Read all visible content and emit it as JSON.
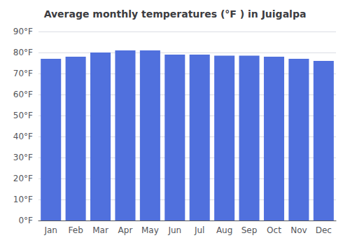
{
  "chart_data": {
    "type": "bar",
    "title": "Average monthly temperatures (°F ) in Juigalpa",
    "categories": [
      "Jan",
      "Feb",
      "Mar",
      "Apr",
      "May",
      "Jun",
      "Jul",
      "Aug",
      "Sep",
      "Oct",
      "Nov",
      "Dec"
    ],
    "values": [
      77,
      78,
      80,
      81,
      81,
      79,
      79,
      78.5,
      78.5,
      78,
      77,
      76
    ],
    "ylim": [
      0,
      90
    ],
    "yticks": [
      {
        "value": 0,
        "label": "0°F"
      },
      {
        "value": 10,
        "label": "10°F"
      },
      {
        "value": 20,
        "label": "20°F"
      },
      {
        "value": 30,
        "label": "30°F"
      },
      {
        "value": 40,
        "label": "40°F"
      },
      {
        "value": 50,
        "label": "50°F"
      },
      {
        "value": 60,
        "label": "60°F"
      },
      {
        "value": 70,
        "label": "70°F"
      },
      {
        "value": 80,
        "label": "80°F"
      },
      {
        "value": 90,
        "label": "90°F"
      }
    ],
    "grid": true
  }
}
